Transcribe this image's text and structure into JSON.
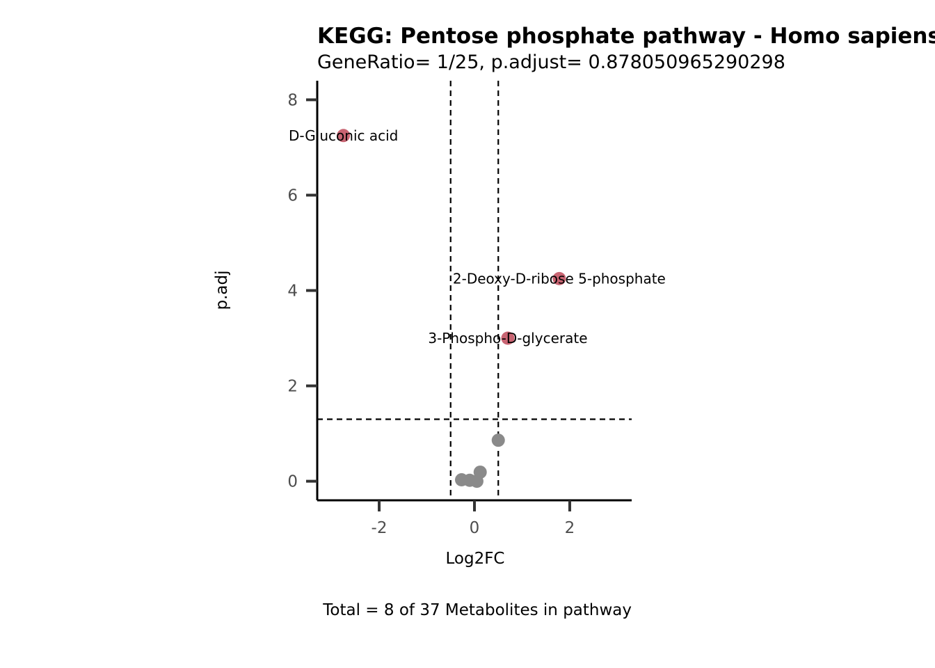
{
  "chart_data": {
    "type": "scatter",
    "title": "KEGG: Pentose phosphate pathway - Homo sapiens (human)",
    "subtitle": "GeneRatio= 1/25, p.adjust= 0.878050965290298",
    "xlabel": "Log2FC",
    "ylabel": "p.adj",
    "caption": "Total = 8 of 37 Metabolites in pathway",
    "xlim": [
      -3.3,
      3.3
    ],
    "ylim": [
      -0.4,
      8.4
    ],
    "x_ticks": [
      -2,
      0,
      2
    ],
    "x_tick_labels": [
      "-2",
      "0",
      "2"
    ],
    "y_ticks": [
      0,
      2,
      4,
      6,
      8
    ],
    "y_tick_labels": [
      "0",
      "2",
      "4",
      "6",
      "8"
    ],
    "thresholds": {
      "x": [
        -0.5,
        0.5
      ],
      "y": 1.3
    },
    "grid": false,
    "colors": {
      "significant": "#c86472",
      "not_significant": "#8a8a8a",
      "threshold_line": "#000000"
    },
    "points": [
      {
        "x": -2.75,
        "y": 7.25,
        "significant": true,
        "label": "D-Gluconic acid"
      },
      {
        "x": 1.78,
        "y": 4.25,
        "significant": true,
        "label": "2-Deoxy-D-ribose 5-phosphate"
      },
      {
        "x": 0.7,
        "y": 3.0,
        "significant": true,
        "label": "3-Phospho-D-glycerate"
      },
      {
        "x": 0.5,
        "y": 0.86,
        "significant": false,
        "label": ""
      },
      {
        "x": 0.12,
        "y": 0.19,
        "significant": false,
        "label": ""
      },
      {
        "x": -0.27,
        "y": 0.03,
        "significant": false,
        "label": ""
      },
      {
        "x": -0.1,
        "y": 0.02,
        "significant": false,
        "label": ""
      },
      {
        "x": 0.05,
        "y": 0.0,
        "significant": false,
        "label": ""
      }
    ]
  }
}
